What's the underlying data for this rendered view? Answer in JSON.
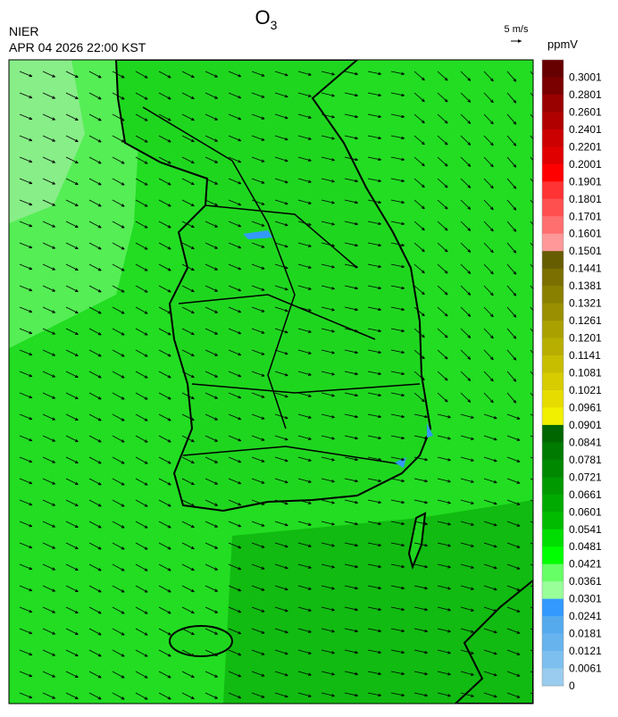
{
  "header": {
    "title": {
      "main": "O",
      "subscript": "3"
    },
    "agency": "NIER",
    "timestamp": "APR 04 2026 22:00 KST",
    "wind_scale": "5 m/s",
    "unit": "ppmV"
  },
  "legend": {
    "labels": [
      0.3001,
      0.2801,
      0.2601,
      0.2401,
      0.2201,
      0.2001,
      0.1901,
      0.1801,
      0.1701,
      0.1601,
      0.1501,
      0.1441,
      0.1381,
      0.1321,
      0.1261,
      0.1201,
      0.1141,
      0.1081,
      0.1021,
      0.0961,
      0.0901,
      0.0841,
      0.0781,
      0.0721,
      0.0661,
      0.0601,
      0.0541,
      0.0481,
      0.0421,
      0.0361,
      0.0301,
      0.0241,
      0.0181,
      0.0121,
      0.0061,
      0
    ],
    "colors": [
      "#660000",
      "#7a0000",
      "#990000",
      "#b00000",
      "#cc0000",
      "#e00000",
      "#ff0000",
      "#ff3333",
      "#ff5050",
      "#ff6f6f",
      "#ff9999",
      "#665c00",
      "#7a6f00",
      "#8a8000",
      "#998f00",
      "#aaa000",
      "#b8ae00",
      "#c8be00",
      "#d6cc00",
      "#e6dc00",
      "#f0f000",
      "#006600",
      "#007a00",
      "#008800",
      "#009900",
      "#00aa00",
      "#00bb00",
      "#00dd00",
      "#00ff00",
      "#66ff66",
      "#99ff99",
      "#3399ff",
      "#55aaee",
      "#66b3ee",
      "#7dbfee",
      "#99ccee"
    ]
  }
}
